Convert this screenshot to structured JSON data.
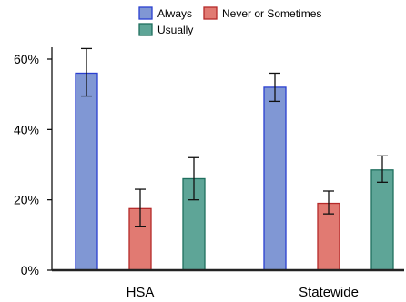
{
  "chart_data": {
    "type": "bar",
    "categories": [
      "HSA",
      "Statewide"
    ],
    "ylim": [
      0,
      0.65
    ],
    "yticks": [
      0,
      0.2,
      0.4,
      0.6
    ],
    "ytick_labels": [
      "0%",
      "20%",
      "40%",
      "60%"
    ],
    "grid": false,
    "legend_position": "top-center",
    "series": [
      {
        "name": "Always",
        "color": "#8097d4",
        "edge": "#2a3fd0",
        "values": [
          0.56,
          0.52
        ],
        "err_low": [
          0.495,
          0.48
        ],
        "err_high": [
          0.63,
          0.56
        ]
      },
      {
        "name": "Never or Sometimes",
        "color": "#e17a72",
        "edge": "#b52a2a",
        "values": [
          0.175,
          0.19
        ],
        "err_low": [
          0.125,
          0.16
        ],
        "err_high": [
          0.23,
          0.225
        ]
      },
      {
        "name": "Usually",
        "color": "#5ea597",
        "edge": "#1f6f5e",
        "values": [
          0.26,
          0.285
        ],
        "err_low": [
          0.2,
          0.25
        ],
        "err_high": [
          0.32,
          0.325
        ]
      }
    ]
  }
}
